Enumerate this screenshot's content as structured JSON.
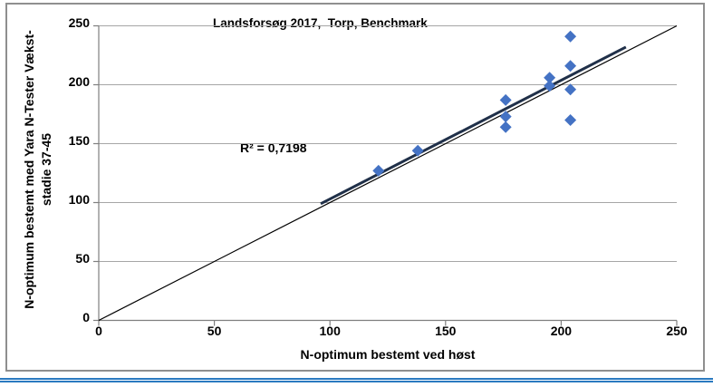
{
  "chart_data": {
    "type": "scatter",
    "title": "Landsforsøg 2017,  Torp, Benchmark",
    "annotation": "R² = 0,7198",
    "xlabel": "N-optimum bestemt ved høst",
    "ylabel_lines": [
      "N-optimum bestemt med Yara N-Tester Vækst-",
      "stadie 37-45"
    ],
    "xlim": [
      0,
      250
    ],
    "ylim": [
      0,
      250
    ],
    "x_ticks": [
      0,
      50,
      100,
      150,
      200,
      250
    ],
    "y_ticks": [
      0,
      50,
      100,
      150,
      200,
      250
    ],
    "grid": "horizontal-only",
    "legend": "none",
    "points": [
      [
        121,
        127
      ],
      [
        138,
        144
      ],
      [
        176,
        164
      ],
      [
        176,
        173
      ],
      [
        176,
        187
      ],
      [
        195,
        199
      ],
      [
        195,
        206
      ],
      [
        204,
        170
      ],
      [
        204,
        196
      ],
      [
        204,
        216
      ],
      [
        204,
        241
      ]
    ],
    "identity_line": {
      "from": [
        0,
        0
      ],
      "to": [
        250,
        250
      ]
    },
    "trendline": {
      "from": [
        96,
        99
      ],
      "to": [
        228,
        232
      ]
    },
    "marker": {
      "shape": "diamond",
      "color": "#4472C4",
      "size": 13
    },
    "colors": {
      "gridline": "#a6a6a6",
      "axis": "#7f7f7f",
      "identity_line": "#000000",
      "trendline": "#203049",
      "text": "#000000",
      "frame_border": "#8f8f8f",
      "bottom_rule": "#2b7ac0"
    }
  }
}
